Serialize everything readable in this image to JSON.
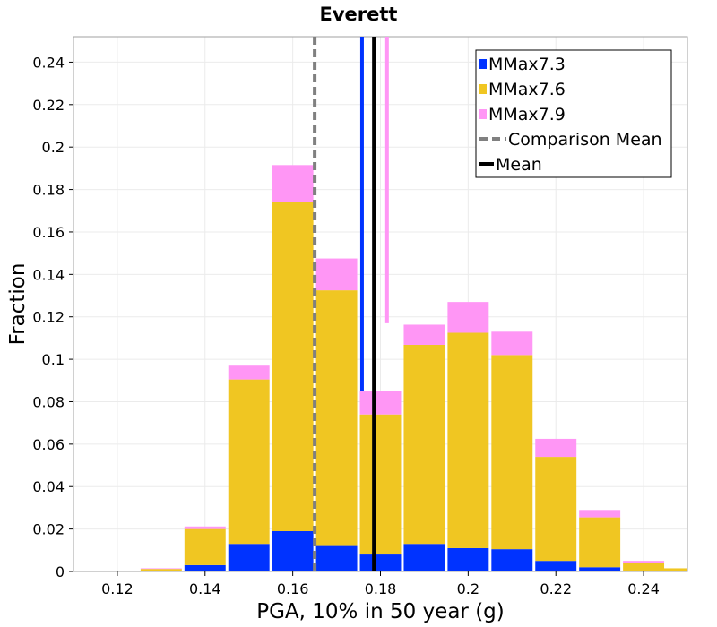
{
  "chart_data": {
    "type": "bar",
    "stacked": true,
    "title": "Everett",
    "xlabel": "PGA, 10% in 50 year (g)",
    "ylabel": "Fraction",
    "xlim": [
      0.11,
      0.25
    ],
    "ylim": [
      0,
      0.252
    ],
    "bin_width": 0.01,
    "x": [
      0.12,
      0.13,
      0.14,
      0.15,
      0.16,
      0.17,
      0.18,
      0.19,
      0.2,
      0.21,
      0.22,
      0.23,
      0.24
    ],
    "series": [
      {
        "name": "MMax7.3",
        "color": "#0033ff",
        "values": [
          0.0,
          0.0,
          0.003,
          0.013,
          0.019,
          0.012,
          0.008,
          0.013,
          0.011,
          0.0105,
          0.005,
          0.002,
          0.0
        ]
      },
      {
        "name": "MMax7.6",
        "color": "#f0c622",
        "values": [
          0.0,
          0.0012,
          0.017,
          0.0775,
          0.155,
          0.1205,
          0.066,
          0.0938,
          0.1015,
          0.0915,
          0.049,
          0.0235,
          0.0042
        ]
      },
      {
        "name": "MMax7.9",
        "color": "#ff96f5",
        "values": [
          0.0,
          0.0003,
          0.0012,
          0.0065,
          0.0175,
          0.015,
          0.011,
          0.0095,
          0.0145,
          0.011,
          0.0085,
          0.0035,
          0.0008
        ]
      }
    ],
    "last_bin_extra": {
      "x": 0.245,
      "value": 0.0015,
      "color": "#f0c622"
    },
    "vertical_lines": [
      {
        "name": "Comparison Mean",
        "x": 0.165,
        "color": "#808080",
        "style": "dashed"
      },
      {
        "name": "MMax7.3 mean",
        "x": 0.1758,
        "color": "#0033ff",
        "style": "solid",
        "from_y": 0.085
      },
      {
        "name": "MMax7.9 mean",
        "x": 0.1815,
        "color": "#ff96f5",
        "style": "solid",
        "from_y": 0.117
      },
      {
        "name": "Mean",
        "x": 0.1785,
        "color": "#000000",
        "style": "solid"
      }
    ],
    "x_ticks": [
      "0.12",
      "0.14",
      "0.16",
      "0.18",
      "0.2",
      "0.22",
      "0.24"
    ],
    "x_tick_values": [
      0.12,
      0.14,
      0.16,
      0.18,
      0.2,
      0.22,
      0.24
    ],
    "y_ticks": [
      "0",
      "0.02",
      "0.04",
      "0.06",
      "0.08",
      "0.1",
      "0.12",
      "0.14",
      "0.16",
      "0.18",
      "0.2",
      "0.22",
      "0.24"
    ],
    "y_tick_values": [
      0,
      0.02,
      0.04,
      0.06,
      0.08,
      0.1,
      0.12,
      0.14,
      0.16,
      0.18,
      0.2,
      0.22,
      0.24
    ],
    "grid": true,
    "legend_position": "top-right",
    "legend": [
      {
        "label": "MMax7.3",
        "kind": "box",
        "color": "#0033ff"
      },
      {
        "label": "MMax7.6",
        "kind": "box",
        "color": "#f0c622"
      },
      {
        "label": "MMax7.9",
        "kind": "box",
        "color": "#ff96f5"
      },
      {
        "label": "Comparison Mean",
        "kind": "dash",
        "color": "#808080"
      },
      {
        "label": "Mean",
        "kind": "line",
        "color": "#000000"
      }
    ]
  }
}
